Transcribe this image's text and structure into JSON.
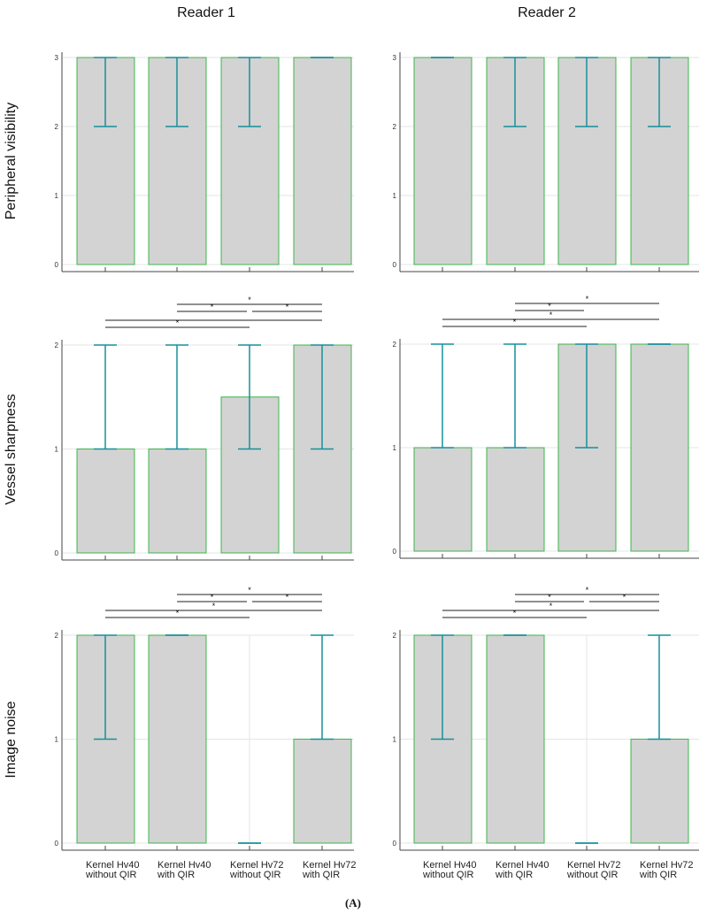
{
  "colors": {
    "bar_fill": "#d3d3d3",
    "bar_edge": "#3cb44b",
    "whisker": "#16909a",
    "grid": "#e6e6e6",
    "axis": "#444444",
    "bracket": "#222222"
  },
  "caption": "(A)",
  "column_titles": [
    "Reader 1",
    "Reader 2"
  ],
  "row_titles": [
    "Peripheral visibility",
    "Vessel sharpness",
    "Image noise"
  ],
  "chart_data": [
    {
      "type": "bar",
      "reader": "Reader 1",
      "ylabel": "Peripheral visibility",
      "ylim": [
        0,
        3
      ],
      "yticks": [
        "0",
        "1",
        "2",
        "3"
      ],
      "categories": [
        "Kernel Hv40 without QIR",
        "Kernel Hv40 with QIR",
        "Kernel Hv72 without QIR",
        "Kernel Hv72 with QIR"
      ],
      "values": [
        3,
        3,
        3,
        3
      ],
      "whiskers": [
        [
          2,
          3
        ],
        [
          2,
          3
        ],
        [
          2,
          3
        ],
        [
          3,
          3
        ]
      ],
      "significance": [],
      "grid": true
    },
    {
      "type": "bar",
      "reader": "Reader 2",
      "ylabel": "Peripheral visibility",
      "ylim": [
        0,
        3
      ],
      "yticks": [
        "0",
        "1",
        "2",
        "3"
      ],
      "categories": [
        "Kernel Hv40 without QIR",
        "Kernel Hv40 with QIR",
        "Kernel Hv72 without QIR",
        "Kernel Hv72 with QIR"
      ],
      "values": [
        3,
        3,
        3,
        3
      ],
      "whiskers": [
        [
          3,
          3
        ],
        [
          2,
          3
        ],
        [
          2,
          3
        ],
        [
          2,
          3
        ]
      ],
      "significance": [],
      "grid": true
    },
    {
      "type": "bar",
      "reader": "Reader 1",
      "ylabel": "Vessel sharpness",
      "ylim": [
        0,
        2
      ],
      "yticks": [
        "0",
        "1",
        "2"
      ],
      "categories": [
        "Kernel Hv40 without QIR",
        "Kernel Hv40 with QIR",
        "Kernel Hv72 without QIR",
        "Kernel Hv72 with QIR"
      ],
      "values": [
        1,
        1,
        1.5,
        2
      ],
      "whiskers": [
        [
          1,
          2
        ],
        [
          1,
          2
        ],
        [
          1,
          2
        ],
        [
          1,
          2
        ]
      ],
      "significance": [
        {
          "pair": [
            1,
            3
          ],
          "label": "*"
        },
        {
          "pair": [
            1,
            4
          ],
          "label": ""
        },
        {
          "pair": [
            2,
            3
          ],
          "label": "*"
        },
        {
          "pair": [
            3,
            4
          ],
          "label": "*"
        },
        {
          "pair": [
            2,
            4
          ],
          "label": "*"
        }
      ],
      "grid": true
    },
    {
      "type": "bar",
      "reader": "Reader 2",
      "ylabel": "Vessel sharpness",
      "ylim": [
        0,
        2
      ],
      "yticks": [
        "0",
        "1",
        "2"
      ],
      "categories": [
        "Kernel Hv40 without QIR",
        "Kernel Hv40 with QIR",
        "Kernel Hv72 without QIR",
        "Kernel Hv72 with QIR"
      ],
      "values": [
        1,
        1,
        2,
        2
      ],
      "whiskers": [
        [
          1,
          2
        ],
        [
          1,
          2
        ],
        [
          1,
          2
        ],
        [
          2,
          2
        ]
      ],
      "significance": [
        {
          "pair": [
            1,
            3
          ],
          "label": "*"
        },
        {
          "pair": [
            1,
            4
          ],
          "label": "*"
        },
        {
          "pair": [
            2,
            3
          ],
          "label": "*"
        },
        {
          "pair": [
            2,
            4
          ],
          "label": "*"
        }
      ],
      "grid": true
    },
    {
      "type": "bar",
      "reader": "Reader 1",
      "ylabel": "Image noise",
      "ylim": [
        0,
        2
      ],
      "yticks": [
        "0",
        "1",
        "2"
      ],
      "categories": [
        "Kernel Hv40 without QIR",
        "Kernel Hv40 with QIR",
        "Kernel Hv72 without QIR",
        "Kernel Hv72 with QIR"
      ],
      "values": [
        2,
        2,
        0,
        1
      ],
      "whiskers": [
        [
          1,
          2
        ],
        [
          2,
          2
        ],
        [
          0,
          0
        ],
        [
          1,
          2
        ]
      ],
      "significance": [
        {
          "pair": [
            1,
            3
          ],
          "label": "*"
        },
        {
          "pair": [
            1,
            4
          ],
          "label": "*"
        },
        {
          "pair": [
            2,
            3
          ],
          "label": "*"
        },
        {
          "pair": [
            3,
            4
          ],
          "label": "*"
        },
        {
          "pair": [
            2,
            4
          ],
          "label": "*"
        }
      ],
      "grid": true
    },
    {
      "type": "bar",
      "reader": "Reader 2",
      "ylabel": "Image noise",
      "ylim": [
        0,
        2
      ],
      "yticks": [
        "0",
        "1",
        "2"
      ],
      "categories": [
        "Kernel Hv40 without QIR",
        "Kernel Hv40 with QIR",
        "Kernel Hv72 without QIR",
        "Kernel Hv72 with QIR"
      ],
      "values": [
        2,
        2,
        0,
        1
      ],
      "whiskers": [
        [
          1,
          2
        ],
        [
          2,
          2
        ],
        [
          0,
          0
        ],
        [
          1,
          2
        ]
      ],
      "significance": [
        {
          "pair": [
            1,
            3
          ],
          "label": "*"
        },
        {
          "pair": [
            1,
            4
          ],
          "label": "*"
        },
        {
          "pair": [
            2,
            3
          ],
          "label": "*"
        },
        {
          "pair": [
            3,
            4
          ],
          "label": "*"
        },
        {
          "pair": [
            2,
            4
          ],
          "label": "*"
        }
      ],
      "grid": true
    }
  ],
  "x_labels": [
    [
      "Kernel Hv40",
      "without QIR"
    ],
    [
      "Kernel Hv40",
      "with QIR"
    ],
    [
      "Kernel Hv72",
      "without QIR"
    ],
    [
      "Kernel Hv72",
      "with QIR"
    ]
  ]
}
